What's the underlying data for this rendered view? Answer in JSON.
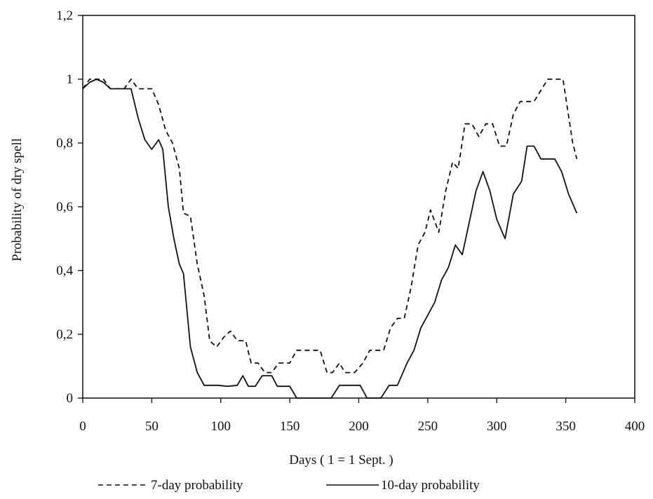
{
  "chart_data": {
    "type": "line",
    "xlabel": "Days ( 1 = 1 Sept. )",
    "ylabel": "Probability of dry spell",
    "xlim": [
      0,
      400
    ],
    "ylim": [
      0,
      1.2
    ],
    "x_ticks": [
      0,
      50,
      100,
      150,
      200,
      250,
      300,
      350,
      400
    ],
    "x_tick_labels": [
      "0",
      "50",
      "100",
      "150",
      "200",
      "250",
      "300",
      "350",
      "400"
    ],
    "y_ticks": [
      0,
      0.2,
      0.4,
      0.6,
      0.8,
      1,
      1.2
    ],
    "y_tick_labels": [
      "0",
      "0,2",
      "0,4",
      "0,6",
      "0,8",
      "1",
      "1,2"
    ],
    "grid": false,
    "legend_position": "bottom",
    "series": [
      {
        "name": "7-day probability",
        "line_style": "dashed",
        "color": "#111111",
        "points": [
          [
            0,
            0.97
          ],
          [
            5,
            1.0
          ],
          [
            10,
            1.0
          ],
          [
            15,
            1.0
          ],
          [
            20,
            0.97
          ],
          [
            25,
            0.97
          ],
          [
            30,
            0.97
          ],
          [
            35,
            1.0
          ],
          [
            40,
            0.97
          ],
          [
            45,
            0.97
          ],
          [
            50,
            0.97
          ],
          [
            55,
            0.92
          ],
          [
            60,
            0.84
          ],
          [
            65,
            0.8
          ],
          [
            70,
            0.72
          ],
          [
            73,
            0.58
          ],
          [
            78,
            0.57
          ],
          [
            83,
            0.42
          ],
          [
            88,
            0.32
          ],
          [
            92,
            0.18
          ],
          [
            97,
            0.16
          ],
          [
            102,
            0.19
          ],
          [
            107,
            0.21
          ],
          [
            112,
            0.18
          ],
          [
            118,
            0.18
          ],
          [
            122,
            0.11
          ],
          [
            127,
            0.11
          ],
          [
            132,
            0.08
          ],
          [
            137,
            0.08
          ],
          [
            142,
            0.11
          ],
          [
            150,
            0.11
          ],
          [
            155,
            0.15
          ],
          [
            160,
            0.15
          ],
          [
            168,
            0.15
          ],
          [
            172,
            0.15
          ],
          [
            177,
            0.08
          ],
          [
            181,
            0.08
          ],
          [
            186,
            0.11
          ],
          [
            190,
            0.08
          ],
          [
            197,
            0.08
          ],
          [
            203,
            0.11
          ],
          [
            208,
            0.15
          ],
          [
            213,
            0.15
          ],
          [
            218,
            0.15
          ],
          [
            223,
            0.22
          ],
          [
            228,
            0.25
          ],
          [
            233,
            0.25
          ],
          [
            238,
            0.35
          ],
          [
            243,
            0.48
          ],
          [
            248,
            0.52
          ],
          [
            252,
            0.59
          ],
          [
            258,
            0.52
          ],
          [
            263,
            0.65
          ],
          [
            268,
            0.74
          ],
          [
            272,
            0.72
          ],
          [
            277,
            0.86
          ],
          [
            282,
            0.86
          ],
          [
            287,
            0.82
          ],
          [
            292,
            0.86
          ],
          [
            297,
            0.86
          ],
          [
            302,
            0.79
          ],
          [
            307,
            0.79
          ],
          [
            312,
            0.89
          ],
          [
            317,
            0.93
          ],
          [
            327,
            0.93
          ],
          [
            337,
            1.0
          ],
          [
            345,
            1.0
          ],
          [
            348,
            1.0
          ],
          [
            355,
            0.8
          ],
          [
            358,
            0.75
          ]
        ]
      },
      {
        "name": "10-day probability",
        "line_style": "solid",
        "color": "#111111",
        "points": [
          [
            0,
            0.97
          ],
          [
            5,
            0.99
          ],
          [
            10,
            1.0
          ],
          [
            15,
            0.99
          ],
          [
            20,
            0.97
          ],
          [
            30,
            0.97
          ],
          [
            35,
            0.97
          ],
          [
            40,
            0.88
          ],
          [
            45,
            0.81
          ],
          [
            50,
            0.78
          ],
          [
            55,
            0.81
          ],
          [
            58,
            0.78
          ],
          [
            62,
            0.6
          ],
          [
            66,
            0.5
          ],
          [
            70,
            0.42
          ],
          [
            73,
            0.39
          ],
          [
            78,
            0.16
          ],
          [
            83,
            0.08
          ],
          [
            88,
            0.04
          ],
          [
            98,
            0.04
          ],
          [
            105,
            0.037
          ],
          [
            112,
            0.04
          ],
          [
            116,
            0.07
          ],
          [
            120,
            0.037
          ],
          [
            125,
            0.037
          ],
          [
            130,
            0.07
          ],
          [
            137,
            0.07
          ],
          [
            141,
            0.037
          ],
          [
            146,
            0.037
          ],
          [
            150,
            0.037
          ],
          [
            155,
            0.0
          ],
          [
            180,
            0.0
          ],
          [
            186,
            0.04
          ],
          [
            197,
            0.04
          ],
          [
            201,
            0.04
          ],
          [
            206,
            0.0
          ],
          [
            212,
            0.0
          ],
          [
            216,
            0.0
          ],
          [
            222,
            0.04
          ],
          [
            228,
            0.04
          ],
          [
            235,
            0.11
          ],
          [
            240,
            0.15
          ],
          [
            245,
            0.22
          ],
          [
            250,
            0.26
          ],
          [
            255,
            0.3
          ],
          [
            260,
            0.37
          ],
          [
            265,
            0.41
          ],
          [
            270,
            0.48
          ],
          [
            275,
            0.45
          ],
          [
            280,
            0.55
          ],
          [
            285,
            0.65
          ],
          [
            290,
            0.71
          ],
          [
            295,
            0.65
          ],
          [
            300,
            0.56
          ],
          [
            306,
            0.5
          ],
          [
            312,
            0.64
          ],
          [
            318,
            0.68
          ],
          [
            322,
            0.79
          ],
          [
            327,
            0.79
          ],
          [
            332,
            0.75
          ],
          [
            337,
            0.75
          ],
          [
            342,
            0.75
          ],
          [
            347,
            0.71
          ],
          [
            352,
            0.64
          ],
          [
            358,
            0.58
          ]
        ]
      }
    ]
  }
}
